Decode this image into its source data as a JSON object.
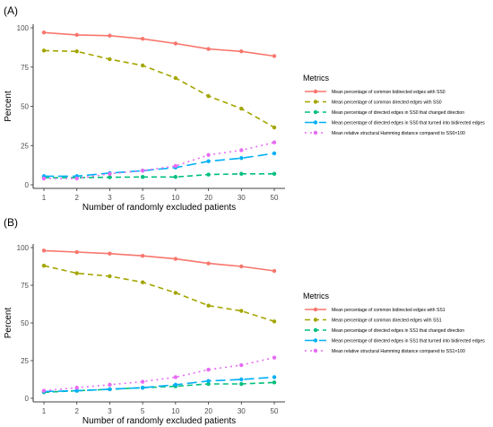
{
  "chart_data": [
    {
      "panel_label": "(A)",
      "type": "line",
      "xlabel": "Number of randomly excluded patients",
      "ylabel": "Percent",
      "x": [
        "1",
        "2",
        "3",
        "5",
        "10",
        "20",
        "30",
        "50"
      ],
      "ylim": [
        0,
        100
      ],
      "yticks": [
        "0",
        "25",
        "50",
        "75",
        "100"
      ],
      "grid": false,
      "legend_title": "Metrics",
      "legend_position": "right",
      "series": [
        {
          "name": "Mean percentage of common bidirected edges with SS0",
          "color": "#F8766D",
          "dash": "solid",
          "values": [
            97,
            95.5,
            95,
            93,
            90,
            86.5,
            85,
            82
          ]
        },
        {
          "name": "Mean percentage of common directed edges with SS0",
          "color": "#A3A500",
          "dash": "dash",
          "values": [
            85.5,
            85,
            80,
            76,
            68,
            56.5,
            48.5,
            36.5
          ]
        },
        {
          "name": "Mean percentage of directed edges in SS0 that changed direction",
          "color": "#00BF7D",
          "dash": "dash",
          "values": [
            4.5,
            4.5,
            4.8,
            5,
            5,
            6.5,
            7,
            7
          ]
        },
        {
          "name": "Mean percentage of directed edges in SS0 that turned into bidirected edges",
          "color": "#00B0F6",
          "dash": "longdash",
          "values": [
            5.5,
            5.5,
            7.5,
            9,
            11,
            15,
            17,
            20
          ]
        },
        {
          "name": "Mean relative structural Hamming distance compared to SS0×100",
          "color": "#E76BF3",
          "dash": "dot",
          "values": [
            4,
            4,
            7,
            9,
            12,
            19,
            22,
            27
          ]
        }
      ]
    },
    {
      "panel_label": "(B)",
      "type": "line",
      "xlabel": "Number of randomly excluded patients",
      "ylabel": "Percent",
      "x": [
        "1",
        "2",
        "3",
        "5",
        "10",
        "20",
        "30",
        "50"
      ],
      "ylim": [
        0,
        100
      ],
      "yticks": [
        "0",
        "25",
        "50",
        "75",
        "100"
      ],
      "grid": false,
      "legend_title": "Metrics",
      "legend_position": "right",
      "series": [
        {
          "name": "Mean percentage of common bidirected edges with SS1",
          "color": "#F8766D",
          "dash": "solid",
          "values": [
            98,
            97,
            96,
            94.5,
            92.5,
            89.5,
            87.5,
            84.5
          ]
        },
        {
          "name": "Mean percentage of common directed edges with SS1",
          "color": "#A3A500",
          "dash": "dash",
          "values": [
            88,
            83,
            81,
            77,
            70,
            61.5,
            58,
            51
          ]
        },
        {
          "name": "Mean percentage of directed edges in SS1 that changed direction",
          "color": "#00BF7D",
          "dash": "dash",
          "values": [
            4,
            5,
            6,
            7,
            8,
            9.5,
            9.5,
            10.5
          ]
        },
        {
          "name": "Mean percentage of directed edges in SS1 that turned into bidirected edges",
          "color": "#00B0F6",
          "dash": "longdash",
          "values": [
            4.5,
            5,
            6,
            7,
            9,
            11.5,
            12.5,
            14
          ]
        },
        {
          "name": "Mean relative structural Hamming distance compared to SS1×100",
          "color": "#E76BF3",
          "dash": "dot",
          "values": [
            5,
            7,
            9,
            11,
            14,
            19,
            22,
            27
          ]
        }
      ]
    }
  ]
}
